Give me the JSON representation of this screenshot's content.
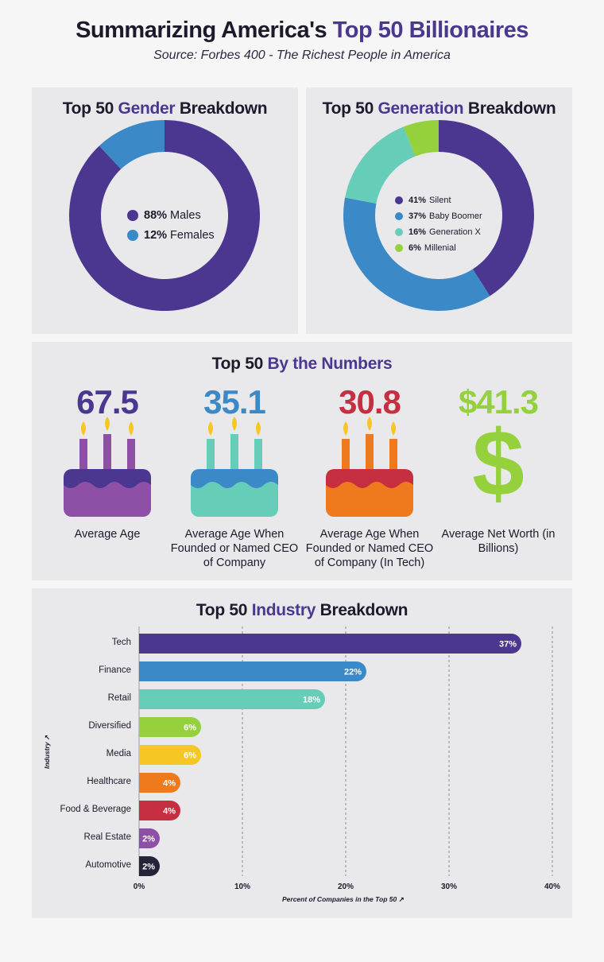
{
  "header": {
    "title_part1": "Summarizing America's ",
    "title_part2": "Top 50 Billionaires",
    "subtitle": "Source: Forbes 400 - The Richest People in America"
  },
  "gender_panel": {
    "title_a": "Top 50 ",
    "title_b": "Gender",
    "title_c": " Breakdown"
  },
  "generation_panel": {
    "title_a": "Top 50 ",
    "title_b": "Generation",
    "title_c": " Breakdown"
  },
  "numbers_panel": {
    "title_a": "Top 50 ",
    "title_b": "By the Numbers",
    "stats": [
      {
        "value": "67.5",
        "label": "Average Age",
        "color": "#4b3790"
      },
      {
        "value": "35.1",
        "label": "Average Age When Founded or Named CEO of Company",
        "color": "#3b8ac7"
      },
      {
        "value": "30.8",
        "label": "Average Age When Founded or Named CEO of Company (In Tech)",
        "color": "#c52f3f"
      },
      {
        "value": "$41.3",
        "label": "Average Net Worth (in Billions)",
        "color": "#95d13c"
      }
    ],
    "dollar_icon": "$"
  },
  "industry_panel": {
    "title_a": "Top 50 ",
    "title_b": "Industry",
    "title_c": " Breakdown"
  },
  "chart_data": [
    {
      "type": "pie",
      "title": "Top 50 Gender Breakdown",
      "categories": [
        "Males",
        "Females"
      ],
      "values": [
        88,
        12
      ],
      "labels": [
        "88%",
        "12%"
      ],
      "colors": [
        "#4b3790",
        "#3b8ac7"
      ],
      "donut": true
    },
    {
      "type": "pie",
      "title": "Top 50 Generation Breakdown",
      "categories": [
        "Silent",
        "Baby Boomer",
        "Generation X",
        "Millenial"
      ],
      "values": [
        41,
        37,
        16,
        6
      ],
      "labels": [
        "41%",
        "37%",
        "16%",
        "6%"
      ],
      "colors": [
        "#4b3790",
        "#3b8ac7",
        "#66cdb9",
        "#95d13c"
      ],
      "donut": true
    },
    {
      "type": "bar",
      "orientation": "horizontal",
      "title": "Top 50 Industry Breakdown",
      "categories": [
        "Tech",
        "Finance",
        "Retail",
        "Diversified",
        "Media",
        "Healthcare",
        "Food & Beverage",
        "Real Estate",
        "Automotive"
      ],
      "values": [
        37,
        22,
        18,
        6,
        6,
        4,
        4,
        2,
        2
      ],
      "value_labels": [
        "37%",
        "22%",
        "18%",
        "6%",
        "6%",
        "4%",
        "4%",
        "2%",
        "2%"
      ],
      "colors": [
        "#4b3790",
        "#3b8ac7",
        "#66cdb9",
        "#95d13c",
        "#f6c624",
        "#ef7a1d",
        "#c52f3f",
        "#8e4fa6",
        "#25233a"
      ],
      "xlabel": "Percent of Companies in the Top 50",
      "ylabel": "Industry",
      "xlim": [
        0,
        40
      ],
      "x_ticks": [
        0,
        10,
        20,
        30,
        40
      ],
      "x_tick_labels": [
        "0%",
        "10%",
        "20%",
        "30%",
        "40%"
      ],
      "grid": true
    }
  ]
}
